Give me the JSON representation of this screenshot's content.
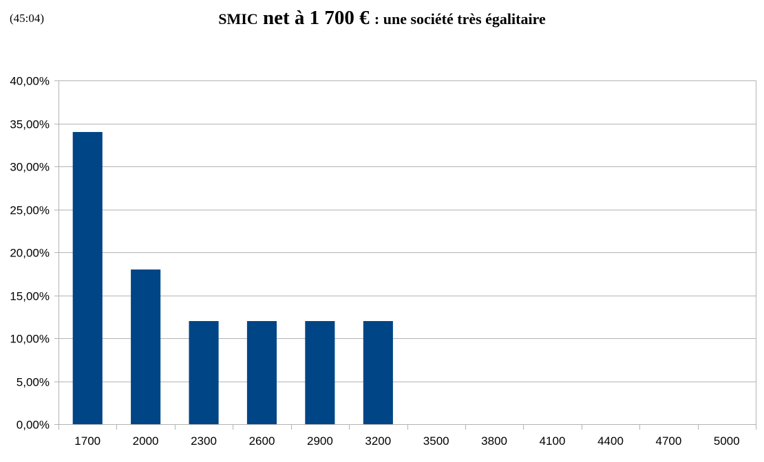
{
  "timestamp": "(45:04)",
  "chart_data": {
    "type": "bar",
    "title": "SMIC net à 1 700 € : une société très égalitaire",
    "title_parts": [
      "SMIC",
      " net à 1 700 € ",
      ": une société très égalitaire"
    ],
    "xlabel": "",
    "ylabel": "",
    "categories": [
      "1700",
      "2000",
      "2300",
      "2600",
      "2900",
      "3200",
      "3500",
      "3800",
      "4100",
      "4400",
      "4700",
      "5000"
    ],
    "values": [
      0.34,
      0.18,
      0.12,
      0.12,
      0.12,
      0.12,
      0,
      0,
      0,
      0,
      0,
      0
    ],
    "ylim": [
      0,
      0.4
    ],
    "yticks": [
      0,
      0.05,
      0.1,
      0.15,
      0.2,
      0.25,
      0.3,
      0.35,
      0.4
    ],
    "ytick_labels": [
      "0,00%",
      "5,00%",
      "10,00%",
      "15,00%",
      "20,00%",
      "25,00%",
      "30,00%",
      "35,00%",
      "40,00%"
    ],
    "bar_color": "#004586",
    "grid": true,
    "legend": "none"
  }
}
